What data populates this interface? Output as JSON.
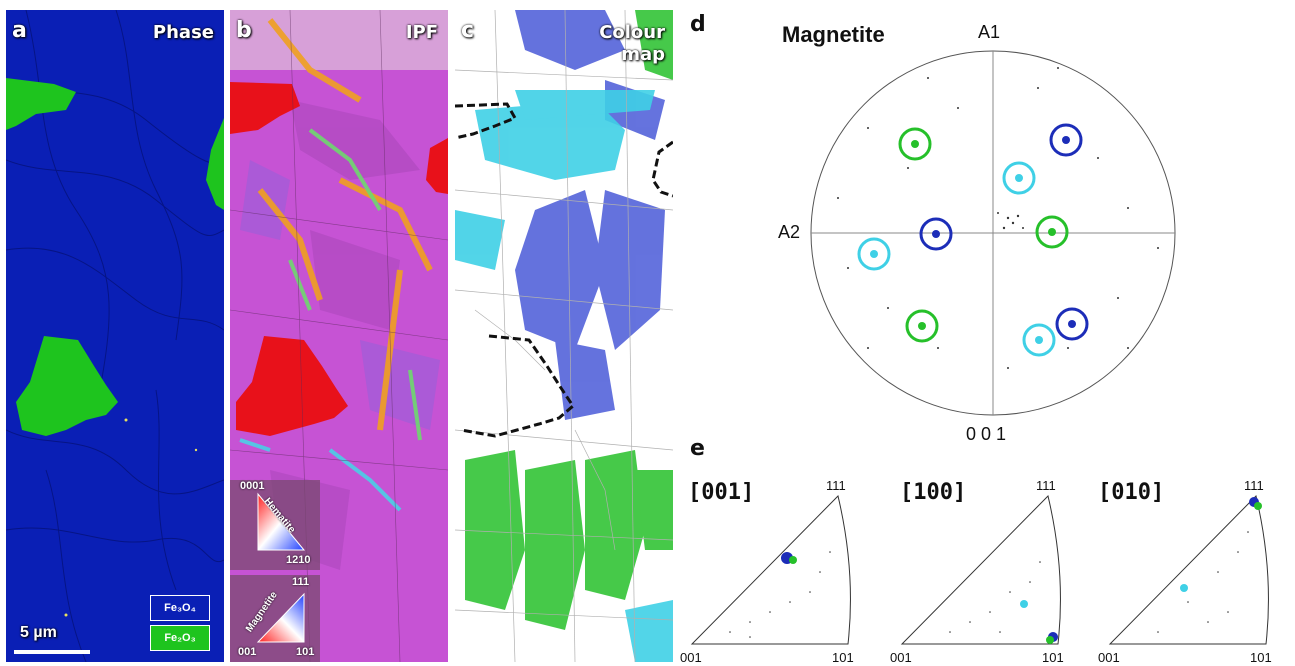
{
  "panels": {
    "a": {
      "letter": "a",
      "title": "Phase",
      "legend": [
        {
          "label": "Fe₃O₄",
          "color": "#0a1fb5"
        },
        {
          "label": "Fe₂O₃",
          "color": "#1ec41e"
        }
      ],
      "scale": "5 µm"
    },
    "b": {
      "letter": "b",
      "title": "IPF",
      "key_hematite": {
        "name": "Hematite",
        "top": "0001",
        "right": "1210"
      },
      "key_magnetite": {
        "name": "Magnetite",
        "top": "111",
        "left": "001",
        "right": "101"
      }
    },
    "c": {
      "letter": "c",
      "title_line1": "Colour",
      "title_line2": "map"
    },
    "d": {
      "letter": "d",
      "title": "Magnetite",
      "axis_top": "A1",
      "axis_left": "A2",
      "axis_bottom": "0 0 1"
    },
    "e": {
      "letter": "e",
      "triangles": [
        {
          "direction": "[001]",
          "top": "111",
          "left": "001",
          "right": "101"
        },
        {
          "direction": "[100]",
          "top": "111",
          "left": "001",
          "right": "101"
        },
        {
          "direction": "[010]",
          "top": "111",
          "left": "001",
          "right": "101"
        }
      ]
    }
  },
  "colors": {
    "magnetite": "#0a1fb5",
    "hematite": "#1ec41e",
    "ipf_magenta": "#c653d4",
    "cyan": "#3fd0e6",
    "blue_circle": "#1c2db8",
    "green_circle": "#26c02a"
  }
}
